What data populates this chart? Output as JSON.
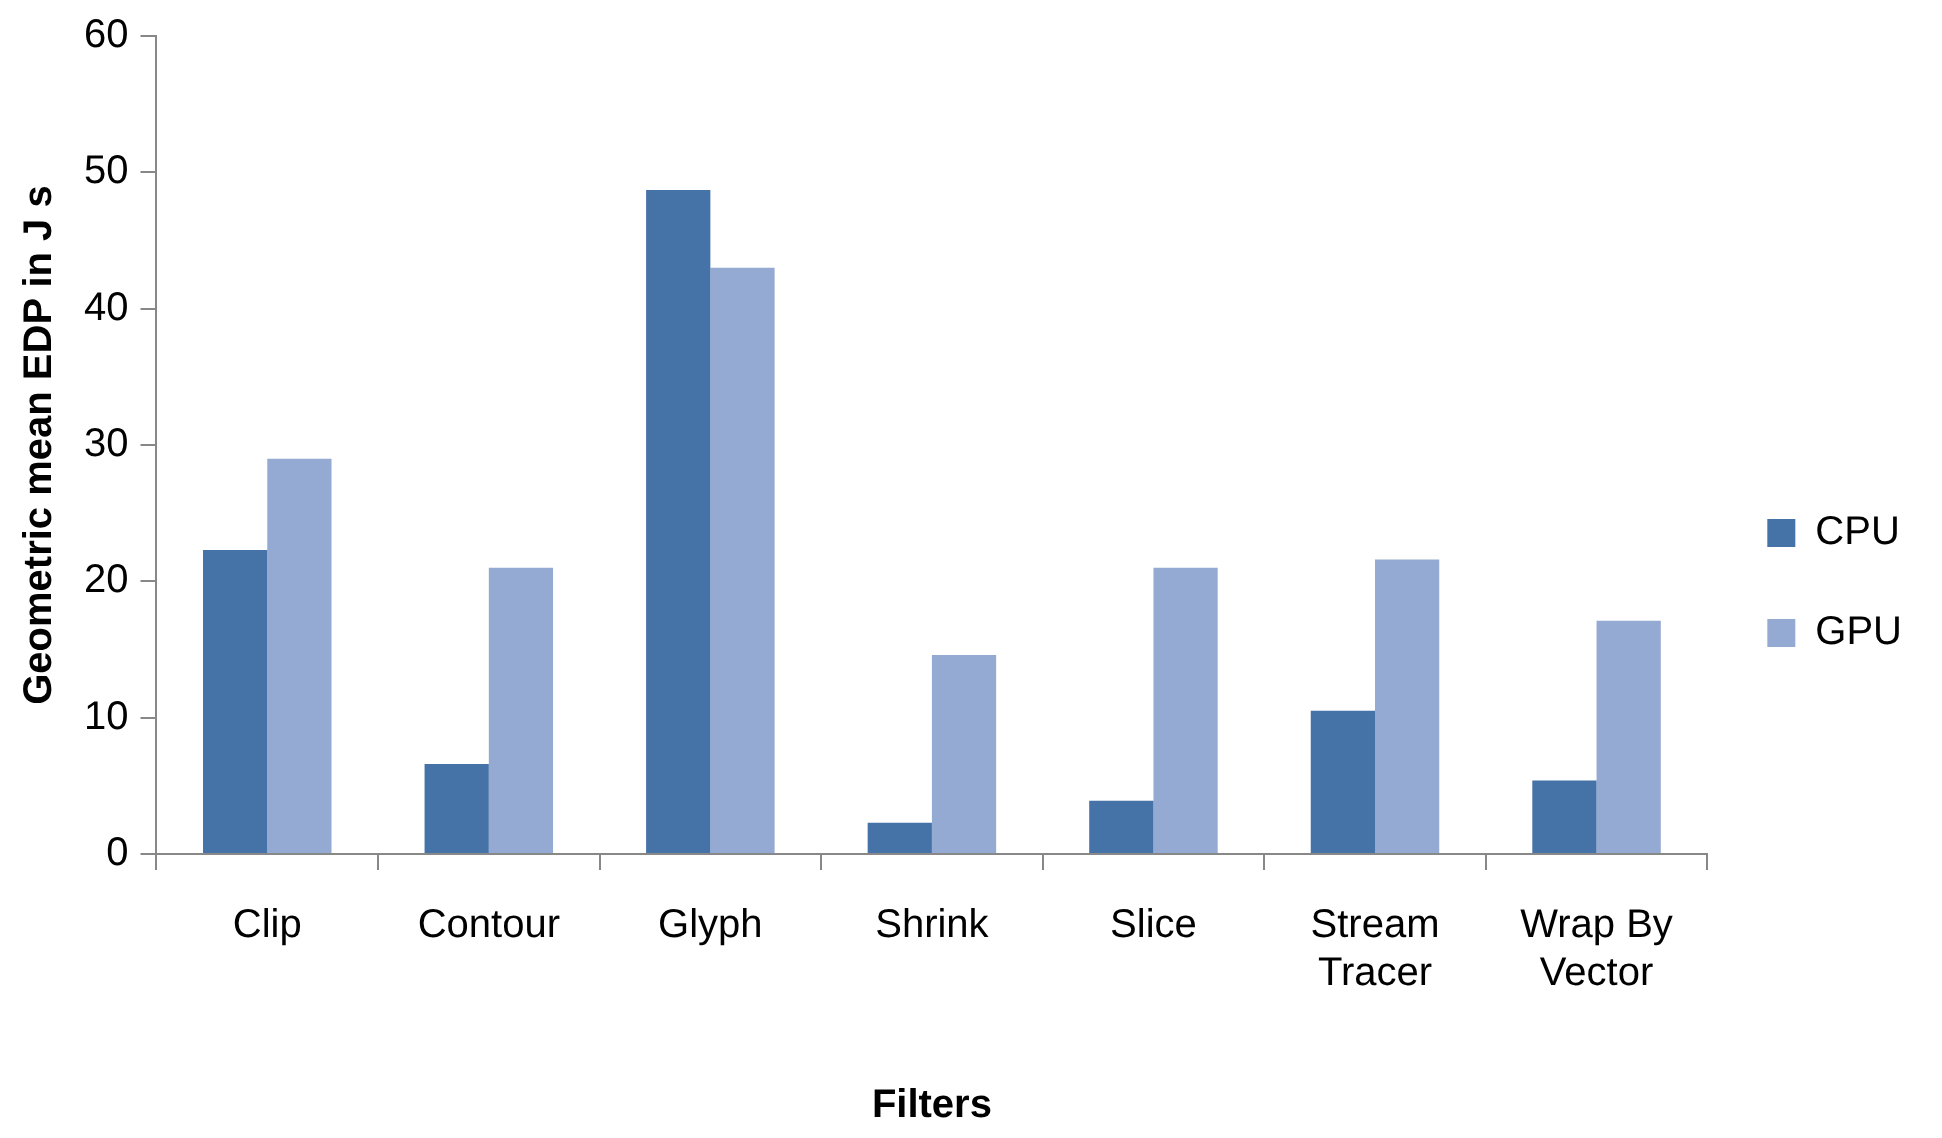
{
  "chart_data": {
    "type": "bar",
    "xlabel": "Filters",
    "ylabel": "Geometric mean EDP in J s",
    "categories": [
      "Clip",
      "Contour",
      "Glyph",
      "Shrink",
      "Slice",
      "Stream Tracer",
      "Wrap By Vector"
    ],
    "series": [
      {
        "name": "CPU",
        "color": "#4572a7",
        "values": [
          22.3,
          6.6,
          48.7,
          2.3,
          3.9,
          10.5,
          5.4
        ]
      },
      {
        "name": "GPU",
        "color": "#95aad3",
        "values": [
          29.0,
          21.0,
          43.0,
          14.6,
          21.0,
          21.6,
          17.1
        ]
      }
    ],
    "ylim": [
      0,
      60
    ],
    "yticks": [
      0,
      10,
      20,
      30,
      40,
      50,
      60
    ],
    "grid": false,
    "legend": "right"
  }
}
